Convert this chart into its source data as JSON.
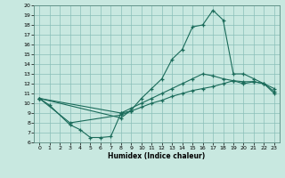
{
  "xlabel": "Humidex (Indice chaleur)",
  "bg_color": "#c8e8e0",
  "grid_color": "#8abfb8",
  "line_color": "#1a6b5a",
  "xlim": [
    -0.5,
    23.5
  ],
  "ylim": [
    6,
    20
  ],
  "xticks": [
    0,
    1,
    2,
    3,
    4,
    5,
    6,
    7,
    8,
    9,
    10,
    11,
    12,
    13,
    14,
    15,
    16,
    17,
    18,
    19,
    20,
    21,
    22,
    23
  ],
  "yticks": [
    6,
    7,
    8,
    9,
    10,
    11,
    12,
    13,
    14,
    15,
    16,
    17,
    18,
    19,
    20
  ],
  "series": [
    {
      "x": [
        0,
        1,
        3,
        4,
        5,
        6,
        7,
        8,
        9
      ],
      "y": [
        10.5,
        9.8,
        7.8,
        7.3,
        6.5,
        6.5,
        6.6,
        9.0,
        9.2
      ]
    },
    {
      "x": [
        0,
        3,
        8,
        9,
        10,
        11,
        12,
        13,
        14,
        15,
        16,
        17,
        18,
        19,
        20,
        21,
        22,
        23
      ],
      "y": [
        10.5,
        8.0,
        8.8,
        9.2,
        9.6,
        10.0,
        10.3,
        10.7,
        11.0,
        11.3,
        11.5,
        11.7,
        12.0,
        12.3,
        12.0,
        12.2,
        12.0,
        11.2
      ]
    },
    {
      "x": [
        0,
        8,
        9,
        10,
        11,
        12,
        13,
        14,
        15,
        16,
        17,
        18,
        19,
        20,
        21,
        22,
        23
      ],
      "y": [
        10.5,
        9.0,
        9.5,
        10.0,
        10.5,
        11.0,
        11.5,
        12.0,
        12.5,
        13.0,
        12.8,
        12.5,
        12.3,
        12.2,
        12.2,
        12.0,
        11.5
      ]
    },
    {
      "x": [
        0,
        8,
        9,
        10,
        11,
        12,
        13,
        14,
        15,
        16,
        17,
        18,
        19,
        20,
        21,
        22,
        23
      ],
      "y": [
        10.5,
        8.5,
        9.3,
        10.5,
        11.5,
        12.5,
        14.5,
        15.5,
        17.8,
        18.0,
        19.5,
        18.5,
        13.0,
        13.0,
        12.5,
        12.0,
        11.0
      ]
    }
  ]
}
